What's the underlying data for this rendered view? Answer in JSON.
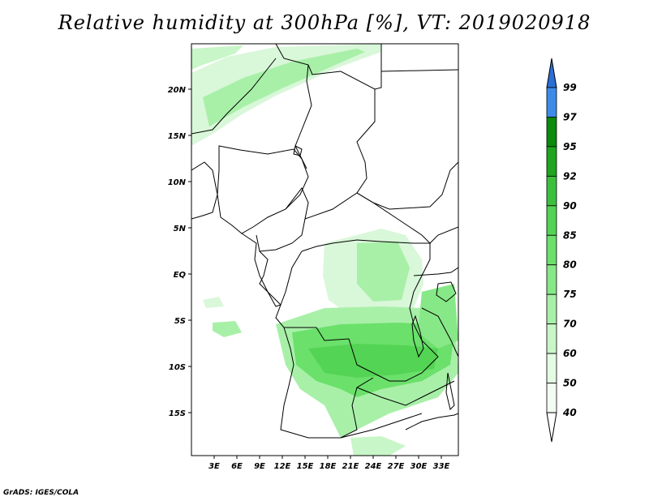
{
  "title": "Relative humidity at 300hPa [%], VT: 2019020918",
  "credit": "GrADS: IGES/COLA",
  "map": {
    "lat_labels": [
      "20N",
      "15N",
      "10N",
      "5N",
      "EQ",
      "5S",
      "10S",
      "15S"
    ],
    "lon_labels": [
      "3E",
      "6E",
      "9E",
      "12E",
      "15E",
      "18E",
      "21E",
      "24E",
      "27E",
      "30E",
      "33E"
    ]
  },
  "colorbar": {
    "levels": [
      "99",
      "97",
      "95",
      "92",
      "90",
      "85",
      "80",
      "75",
      "70",
      "60",
      "50",
      "40"
    ],
    "colors": [
      "#2b6fd6",
      "#3d8be8",
      "#0b8a0b",
      "#1fa51f",
      "#3cc03c",
      "#54d454",
      "#6be06b",
      "#87e887",
      "#a8f0a8",
      "#c8f6c8",
      "#e4fbe4",
      "#f2fdf2"
    ]
  },
  "chart_data": {
    "type": "heatmap",
    "title": "Relative humidity at 300hPa [%], VT: 2019020918",
    "variable": "Relative humidity",
    "units": "%",
    "pressure_level_hPa": 300,
    "valid_time": "2019020918",
    "lon_range": [
      0,
      35
    ],
    "lat_range": [
      -20,
      25
    ],
    "colorbar_levels": [
      40,
      50,
      60,
      70,
      75,
      80,
      85,
      90,
      92,
      95,
      97,
      99
    ]
  }
}
